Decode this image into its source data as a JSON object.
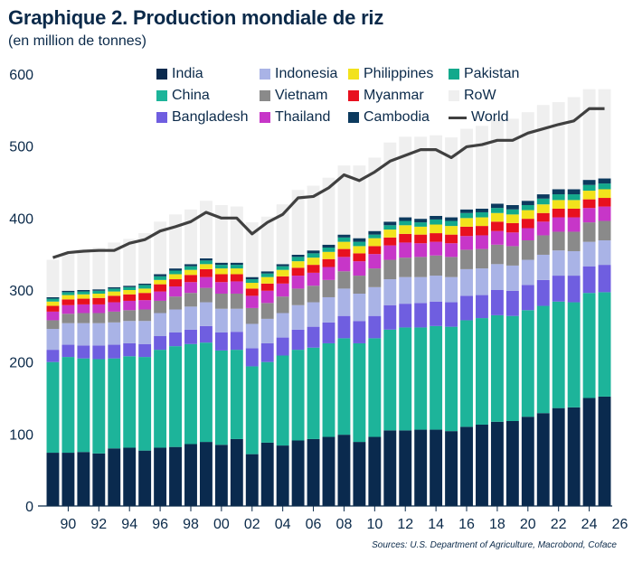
{
  "title": "Graphique 2. Production mondiale de riz",
  "subtitle": "(en million de tonnes)",
  "source": "Sources: U.S. Department of Agriculture, Macrobond, Coface",
  "chart_data": {
    "type": "bar",
    "stacked": true,
    "ylim": [
      0,
      600
    ],
    "yticks": [
      0,
      100,
      200,
      300,
      400,
      500,
      600
    ],
    "xtick_labels": [
      "90",
      "92",
      "94",
      "96",
      "98",
      "00",
      "02",
      "04",
      "06",
      "08",
      "10",
      "12",
      "14",
      "16",
      "18",
      "20",
      "22",
      "24",
      "26"
    ],
    "categories": [
      "1989",
      "1990",
      "1991",
      "1992",
      "1993",
      "1994",
      "1995",
      "1996",
      "1997",
      "1998",
      "1999",
      "2000",
      "2001",
      "2002",
      "2003",
      "2004",
      "2005",
      "2006",
      "2007",
      "2008",
      "2009",
      "2010",
      "2011",
      "2012",
      "2013",
      "2014",
      "2015",
      "2016",
      "2017",
      "2018",
      "2019",
      "2020",
      "2021",
      "2022",
      "2023",
      "2024",
      "2025"
    ],
    "legend": [
      {
        "name": "India",
        "color": "#0a2a4e",
        "kind": "bar"
      },
      {
        "name": "Indonesia",
        "color": "#a9b3e6",
        "kind": "bar"
      },
      {
        "name": "Philippines",
        "color": "#f2e21c",
        "kind": "bar"
      },
      {
        "name": "Pakistan",
        "color": "#13a98c",
        "kind": "bar"
      },
      {
        "name": "China",
        "color": "#1db49a",
        "kind": "bar"
      },
      {
        "name": "Vietnam",
        "color": "#8a8a8a",
        "kind": "bar"
      },
      {
        "name": "Myanmar",
        "color": "#e8101e",
        "kind": "bar"
      },
      {
        "name": "RoW",
        "color": "#efefef",
        "kind": "bar"
      },
      {
        "name": "Bangladesh",
        "color": "#6f5ee0",
        "kind": "bar"
      },
      {
        "name": "Thailand",
        "color": "#c736c8",
        "kind": "bar"
      },
      {
        "name": "Cambodia",
        "color": "#0c3a5e",
        "kind": "bar"
      },
      {
        "name": "World",
        "color": "#404040",
        "kind": "line"
      }
    ],
    "series": [
      {
        "name": "India",
        "color": "#0a2a4e",
        "values": [
          74,
          74,
          75,
          73,
          80,
          81,
          77,
          81,
          82,
          86,
          89,
          85,
          93,
          72,
          88,
          84,
          91,
          93,
          96,
          99,
          89,
          96,
          105,
          105,
          106,
          106,
          104,
          110,
          113,
          117,
          118,
          124,
          129,
          136,
          137,
          150,
          152
        ]
      },
      {
        "name": "China",
        "color": "#1db49a",
        "values": [
          126,
          133,
          130,
          131,
          125,
          127,
          130,
          136,
          140,
          139,
          138,
          131,
          124,
          122,
          112,
          125,
          126,
          127,
          130,
          134,
          137,
          137,
          140,
          143,
          142,
          144,
          145,
          148,
          148,
          148,
          146,
          148,
          149,
          148,
          146,
          146,
          145
        ]
      },
      {
        "name": "Bangladesh",
        "color": "#6f5ee0",
        "values": [
          17,
          17,
          18,
          19,
          19,
          18,
          18,
          19,
          19,
          20,
          23,
          25,
          25,
          25,
          26,
          25,
          28,
          29,
          29,
          31,
          31,
          31,
          34,
          33,
          34,
          34,
          34,
          34,
          32,
          35,
          35,
          35,
          36,
          36,
          37,
          37,
          38
        ]
      },
      {
        "name": "Indonesia",
        "color": "#a9b3e6",
        "values": [
          29,
          30,
          31,
          31,
          31,
          31,
          32,
          32,
          32,
          32,
          33,
          33,
          32,
          34,
          34,
          34,
          34,
          34,
          35,
          38,
          38,
          40,
          36,
          37,
          36,
          36,
          35,
          37,
          37,
          36,
          35,
          35,
          35,
          35,
          34,
          34,
          34
        ]
      },
      {
        "name": "Vietnam",
        "color": "#8a8a8a",
        "values": [
          12,
          13,
          14,
          14,
          15,
          15,
          16,
          17,
          18,
          19,
          20,
          21,
          21,
          22,
          22,
          23,
          23,
          23,
          24,
          24,
          25,
          26,
          27,
          27,
          28,
          28,
          28,
          27,
          27,
          27,
          27,
          27,
          27,
          26,
          27,
          27,
          27
        ]
      },
      {
        "name": "Thailand",
        "color": "#c736c8",
        "values": [
          12,
          12,
          12,
          12,
          13,
          13,
          13,
          13,
          14,
          15,
          15,
          16,
          17,
          17,
          17,
          18,
          18,
          18,
          18,
          20,
          20,
          20,
          20,
          21,
          19,
          19,
          19,
          19,
          19,
          19,
          19,
          17,
          19,
          20,
          20,
          20,
          20
        ]
      },
      {
        "name": "Myanmar",
        "color": "#e8101e",
        "values": [
          8,
          8,
          8,
          9,
          9,
          9,
          10,
          10,
          10,
          10,
          11,
          11,
          10,
          10,
          10,
          10,
          11,
          11,
          11,
          11,
          11,
          11,
          11,
          12,
          12,
          12,
          12,
          13,
          13,
          13,
          13,
          13,
          12,
          12,
          12,
          12,
          12
        ]
      },
      {
        "name": "Philippines",
        "color": "#f2e21c",
        "values": [
          6,
          6,
          6,
          6,
          6,
          6,
          6,
          6,
          7,
          7,
          7,
          8,
          8,
          8,
          9,
          9,
          9,
          10,
          10,
          10,
          10,
          11,
          11,
          12,
          11,
          12,
          12,
          12,
          12,
          12,
          12,
          12,
          12,
          12,
          12,
          12,
          12
        ]
      },
      {
        "name": "Pakistan",
        "color": "#13a98c",
        "values": [
          4,
          4,
          4,
          4,
          4,
          4,
          5,
          5,
          5,
          5,
          5,
          5,
          5,
          5,
          5,
          5,
          6,
          6,
          6,
          6,
          6,
          5,
          6,
          6,
          6,
          7,
          7,
          7,
          7,
          7,
          7,
          7,
          8,
          8,
          8,
          8,
          8
        ]
      },
      {
        "name": "Cambodia",
        "color": "#0c3a5e",
        "values": [
          2,
          2,
          2,
          2,
          2,
          2,
          2,
          3,
          3,
          3,
          3,
          3,
          3,
          3,
          3,
          3,
          3,
          4,
          4,
          4,
          5,
          5,
          5,
          5,
          5,
          5,
          5,
          5,
          5,
          6,
          6,
          6,
          6,
          7,
          7,
          7,
          7
        ]
      },
      {
        "name": "RoW",
        "color": "#efefef",
        "values": [
          52,
          53,
          56,
          58,
          62,
          65,
          70,
          73,
          75,
          76,
          80,
          80,
          78,
          76,
          76,
          83,
          90,
          90,
          93,
          96,
          101,
          102,
          110,
          112,
          114,
          112,
          111,
          112,
          115,
          119,
          120,
          123,
          124,
          121,
          128,
          126,
          124
        ]
      }
    ],
    "world": {
      "name": "World",
      "color": "#404040",
      "values": [
        345,
        352,
        354,
        355,
        355,
        365,
        370,
        382,
        388,
        395,
        408,
        400,
        400,
        378,
        394,
        405,
        428,
        430,
        442,
        460,
        452,
        464,
        479,
        487,
        495,
        495,
        484,
        499,
        502,
        508,
        508,
        518,
        524,
        530,
        535,
        552,
        552
      ]
    }
  }
}
